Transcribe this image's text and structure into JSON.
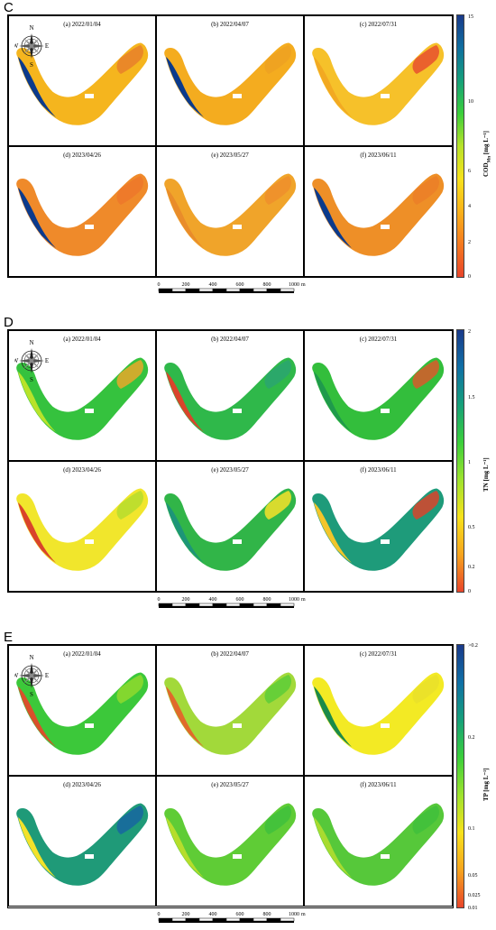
{
  "panels": [
    {
      "letter": "C",
      "variable_label": "COD",
      "variable_sub": "Mn",
      "units": " [mg L⁻¹]",
      "ticks": [
        "15",
        "10",
        "6",
        "4",
        "2",
        "0"
      ],
      "colormap": [
        "#1a3a8a",
        "#0f6fa0",
        "#16a07a",
        "#3bcf3b",
        "#b8e22a",
        "#f7e21c",
        "#f9b21a",
        "#f57a20",
        "#e8452b"
      ],
      "lake_color": "#f5b01c",
      "edge_color": "#0b3a8c",
      "maps": [
        {
          "title": "(a) 2022/01/04",
          "fill": "#f5b51e",
          "accent": "#0b3a8c",
          "patch": "#e8802a"
        },
        {
          "title": "(b) 2022/04/07",
          "fill": "#f4ac1f",
          "accent": "#0b3a8c",
          "patch": "#eda122"
        },
        {
          "title": "(c) 2022/07/31",
          "fill": "#f6c12a",
          "accent": "#f2a922",
          "patch": "#e8502e"
        },
        {
          "title": "(d) 2023/04/26",
          "fill": "#ef8a2a",
          "accent": "#0b3a8c",
          "patch": "#ed772a"
        },
        {
          "title": "(e) 2023/05/27",
          "fill": "#f0a42a",
          "accent": "#e98c2a",
          "patch": "#ef8f2c"
        },
        {
          "title": "(f) 2023/06/11",
          "fill": "#ee8f27",
          "accent": "#0b3a8c",
          "patch": "#eb7f28"
        }
      ]
    },
    {
      "letter": "D",
      "variable_label": "TN",
      "variable_sub": "",
      "units": " [mg L⁻¹]",
      "ticks": [
        "2",
        "1.5",
        "1",
        "0.5",
        "0.2",
        "0"
      ],
      "colormap": [
        "#1a3a8a",
        "#1070a6",
        "#16a07a",
        "#3bcf3b",
        "#9ee32e",
        "#f7e21c",
        "#f6a51e",
        "#e8452b"
      ],
      "maps": [
        {
          "title": "(a) 2022/01/04",
          "fill": "#35c23e",
          "accent": "#b8e22a",
          "patch": "#e8a82a"
        },
        {
          "title": "(b) 2022/04/07",
          "fill": "#2fb84a",
          "accent": "#d9442b",
          "patch": "#2aa470"
        },
        {
          "title": "(c) 2022/07/31",
          "fill": "#33be3c",
          "accent": "#1f9a4c",
          "patch": "#d95a2a"
        },
        {
          "title": "(d) 2023/04/26",
          "fill": "#f1e62c",
          "accent": "#d9442b",
          "patch": "#b6dc2e"
        },
        {
          "title": "(e) 2023/05/27",
          "fill": "#31b548",
          "accent": "#1d9578",
          "patch": "#f6e22a"
        },
        {
          "title": "(f) 2023/06/11",
          "fill": "#1e9b7a",
          "accent": "#f2c52a",
          "patch": "#d9442b"
        }
      ]
    },
    {
      "letter": "E",
      "variable_label": "TP",
      "variable_sub": "",
      "units": " [mg L⁻¹]",
      "ticks": [
        ">0.2",
        "0.2",
        "0.1",
        "0.05",
        "0.025",
        "0.01"
      ],
      "colormap": [
        "#1a3a8a",
        "#1070a6",
        "#16a07a",
        "#3bcf3b",
        "#9ee32e",
        "#f7e21c",
        "#f6a51e",
        "#e8452b"
      ],
      "maps": [
        {
          "title": "(a) 2022/01/04",
          "fill": "#3cc83a",
          "accent": "#d9502b",
          "patch": "#8fd92e"
        },
        {
          "title": "(b) 2022/04/07",
          "fill": "#a2d93a",
          "accent": "#e06a2b",
          "patch": "#5dcc38"
        },
        {
          "title": "(c) 2022/07/31",
          "fill": "#f3ea24",
          "accent": "#1b8a4a",
          "patch": "#e9e12a"
        },
        {
          "title": "(d) 2023/04/26",
          "fill": "#1f9a78",
          "accent": "#f3e22a",
          "patch": "#1766a0"
        },
        {
          "title": "(e) 2023/05/27",
          "fill": "#5fcc36",
          "accent": "#b6dd2c",
          "patch": "#3fbf3c"
        },
        {
          "title": "(f) 2023/06/11",
          "fill": "#56c83a",
          "accent": "#a8db30",
          "patch": "#3fbf3c"
        }
      ]
    }
  ],
  "compass": {
    "n": "N",
    "s": "S",
    "e": "E",
    "w": "W"
  },
  "scalebar": {
    "ticks": [
      "0",
      "200",
      "400",
      "600",
      "800",
      "1000"
    ],
    "unit": "m"
  }
}
